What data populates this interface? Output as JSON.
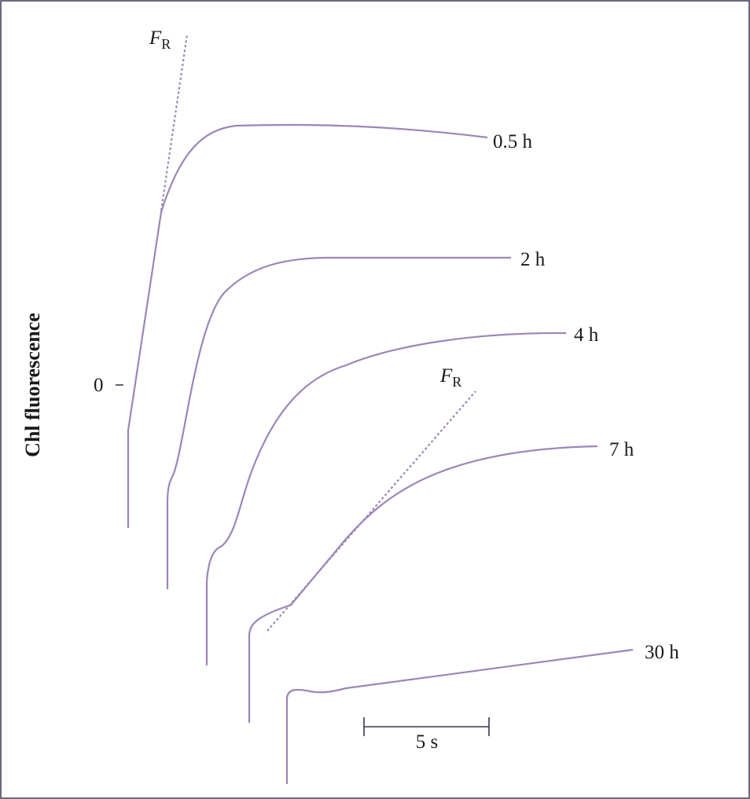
{
  "y_axis_label": "Chl fluorescence",
  "zero_label": "0",
  "curves": [
    {
      "label": "0.5 h"
    },
    {
      "label": "2 h"
    },
    {
      "label": "4 h"
    },
    {
      "label": "7 h"
    },
    {
      "label": "30 h"
    }
  ],
  "fr_labels": [
    {
      "main": "F",
      "sub": "R"
    },
    {
      "main": "F",
      "sub": "R"
    }
  ],
  "scale_bar": {
    "label": "5 s"
  }
}
